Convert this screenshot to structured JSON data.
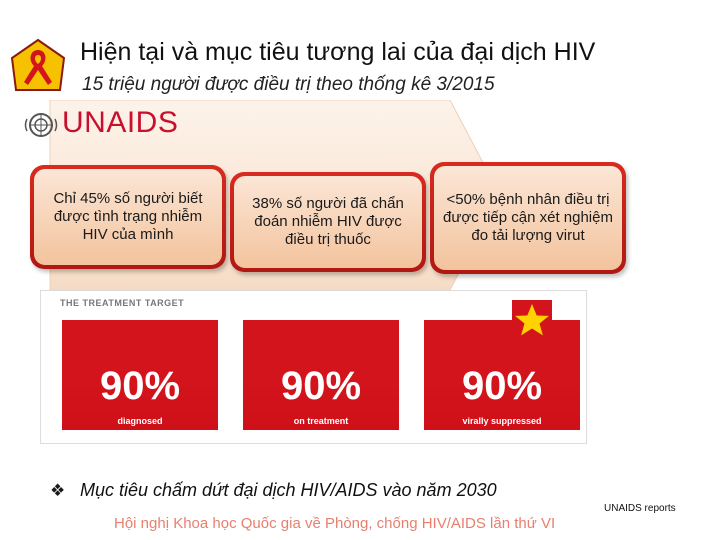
{
  "header": {
    "title": "Hiện tại và mục tiêu tương lai của đại dịch HIV",
    "subtitle": "15 triệu người được điều trị theo thống kê 3/2015"
  },
  "logo": {
    "ribbon_icon": "red-ribbon-icon",
    "org_name": "UNAIDS",
    "org_color": "#c8102e"
  },
  "steps": [
    {
      "text": "Chỉ 45% số người biết được tình trạng nhiễm HIV của mình"
    },
    {
      "text": "38% số người đã chẩn đoán nhiễm HIV được điều trị thuốc"
    },
    {
      "text": "<50% bệnh nhân điều trị được tiếp cận xét nghiệm đo tải lượng virut"
    }
  ],
  "treatment_target": {
    "title": "THE TREATMENT TARGET",
    "items": [
      {
        "value": "90%",
        "label": "diagnosed"
      },
      {
        "value": "90%",
        "label": "on treatment"
      },
      {
        "value": "90%",
        "label": "virally suppressed"
      }
    ],
    "accent": "#d4141c"
  },
  "goal": {
    "bullet_icon": "diamond-bullet-icon",
    "text": "Mục tiêu chấm dứt đại dịch HIV/AIDS vào năm 2030"
  },
  "source": "UNAIDS reports",
  "footer": "Hội nghị Khoa học Quốc gia về Phòng, chống HIV/AIDS lần thứ VI"
}
